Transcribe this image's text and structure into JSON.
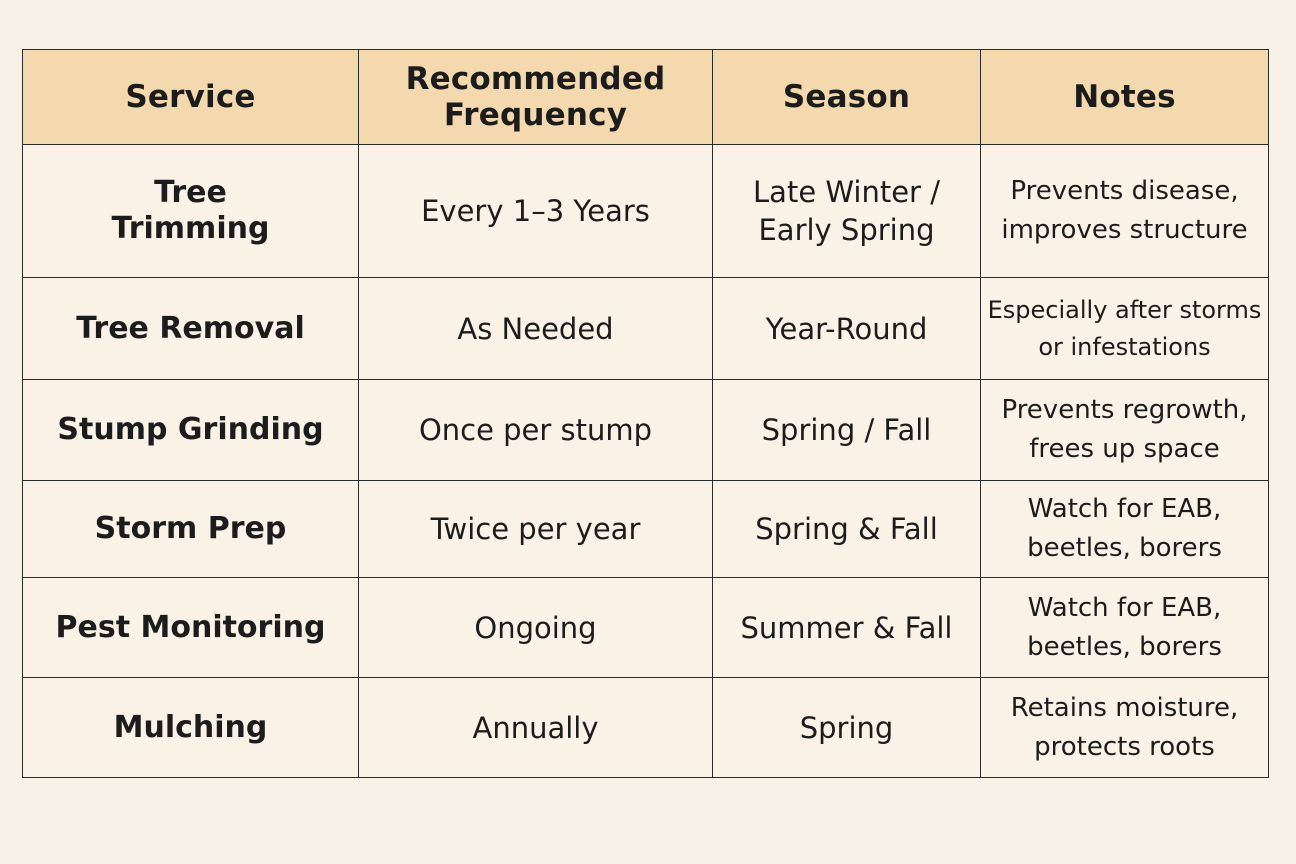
{
  "table": {
    "headers": [
      "Service",
      "Recommended Frequency",
      "Season",
      "Notes"
    ],
    "rows": [
      {
        "service": "Tree Trimming",
        "frequency": "Every 1–3 Years",
        "season": "Late Winter / Early Spring",
        "notes": "Prevents disease, improves structure"
      },
      {
        "service": "Tree Removal",
        "frequency": "As Needed",
        "season": "Year-Round",
        "notes": "Especially after storms or infestations"
      },
      {
        "service": "Stump Grinding",
        "frequency": "Once per stump",
        "season": "Spring / Fall",
        "notes": "Prevents regrowth, frees up space"
      },
      {
        "service": "Storm Prep",
        "frequency": "Twice per year",
        "season": "Spring & Fall",
        "notes": "Watch for EAB, beetles, borers"
      },
      {
        "service": "Pest Monitoring",
        "frequency": "Ongoing",
        "season": "Summer & Fall",
        "notes": "Watch for EAB, beetles, borers"
      },
      {
        "service": "Mulching",
        "frequency": "Annually",
        "season": "Spring",
        "notes": "Retains moisture, protects roots"
      }
    ]
  }
}
